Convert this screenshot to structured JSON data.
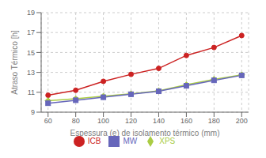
{
  "chart_data": {
    "type": "line",
    "x": [
      60,
      80,
      100,
      120,
      140,
      160,
      180,
      200
    ],
    "series": [
      {
        "name": "ICB",
        "color": "#cc2222",
        "marker": "circle",
        "values": [
          10.7,
          11.2,
          12.1,
          12.8,
          13.4,
          14.7,
          15.5,
          16.7
        ]
      },
      {
        "name": "XPS",
        "color": "#aacc44",
        "marker": "diamond",
        "values": [
          10.15,
          10.35,
          10.6,
          10.85,
          11.15,
          11.75,
          12.3,
          12.75
        ]
      },
      {
        "name": "MW",
        "color": "#6666bb",
        "marker": "square",
        "values": [
          9.9,
          10.2,
          10.5,
          10.8,
          11.1,
          11.65,
          12.2,
          12.7
        ]
      }
    ],
    "xlabel": "Espessura (e) de isolamento térmico (mm)",
    "ylabel": "Atraso Térmico [h]",
    "xlim": [
      55,
      205
    ],
    "xticks": [
      60,
      80,
      100,
      120,
      140,
      160,
      180,
      200
    ],
    "ylim": [
      9,
      19
    ],
    "yticks": [
      9,
      11,
      13,
      15,
      17,
      19
    ],
    "grid": true,
    "legend": "bottom"
  }
}
